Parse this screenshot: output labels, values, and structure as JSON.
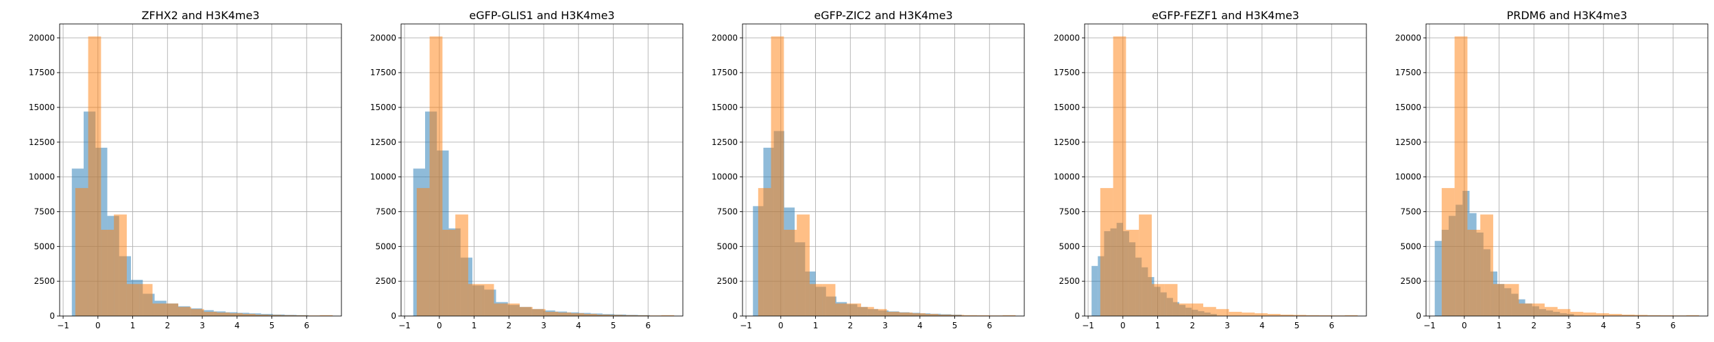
{
  "chart_data": [
    {
      "type": "bar",
      "title": "ZFHX2 and H3K4me3",
      "xlim": [
        -1.1,
        7.0
      ],
      "ylim": [
        0,
        21000
      ],
      "xticks": [
        -1,
        0,
        1,
        2,
        3,
        4,
        5,
        6
      ],
      "yticks": [
        0,
        2500,
        5000,
        7500,
        10000,
        12500,
        15000,
        17500,
        20000
      ],
      "grid": true,
      "series": [
        {
          "color": "#1f77b4",
          "alpha": 0.5,
          "bin_edges": [
            -0.75,
            -0.41,
            -0.07,
            0.27,
            0.61,
            0.95,
            1.29,
            1.63,
            1.97,
            2.31,
            2.65,
            2.99,
            3.33,
            3.67,
            4.01,
            4.35,
            4.69,
            5.03,
            5.37,
            5.71,
            6.05
          ],
          "counts": [
            10600,
            14700,
            12100,
            7200,
            4300,
            2600,
            1600,
            1100,
            900,
            700,
            550,
            420,
            330,
            270,
            230,
            190,
            150,
            110,
            80,
            60
          ]
        },
        {
          "color": "#ff7f0e",
          "alpha": 0.5,
          "bin_edges": [
            -0.65,
            -0.28,
            0.09,
            0.46,
            0.83,
            1.2,
            1.57,
            1.94,
            2.31,
            2.68,
            3.05,
            3.42,
            3.79,
            4.16,
            4.53,
            4.9,
            5.27,
            5.64,
            6.01,
            6.38,
            6.75
          ],
          "counts": [
            9200,
            20100,
            6200,
            7300,
            2300,
            2300,
            900,
            900,
            650,
            500,
            300,
            250,
            200,
            150,
            100,
            80,
            60,
            50,
            40,
            60
          ]
        }
      ]
    },
    {
      "type": "bar",
      "title": "eGFP-GLIS1 and H3K4me3",
      "xlim": [
        -1.1,
        7.0
      ],
      "ylim": [
        0,
        21000
      ],
      "xticks": [
        -1,
        0,
        1,
        2,
        3,
        4,
        5,
        6
      ],
      "yticks": [
        0,
        2500,
        5000,
        7500,
        10000,
        12500,
        15000,
        17500,
        20000
      ],
      "grid": true,
      "series": [
        {
          "color": "#1f77b4",
          "alpha": 0.5,
          "bin_edges": [
            -0.75,
            -0.41,
            -0.07,
            0.27,
            0.61,
            0.95,
            1.29,
            1.63,
            1.97,
            2.31,
            2.65,
            2.99,
            3.33,
            3.67,
            4.01,
            4.35,
            4.69,
            5.03,
            5.37,
            5.71,
            6.05
          ],
          "counts": [
            10600,
            14700,
            11900,
            6300,
            4200,
            2200,
            1900,
            1000,
            800,
            650,
            500,
            400,
            320,
            260,
            220,
            180,
            140,
            110,
            80,
            60
          ]
        },
        {
          "color": "#ff7f0e",
          "alpha": 0.5,
          "bin_edges": [
            -0.65,
            -0.28,
            0.09,
            0.46,
            0.83,
            1.2,
            1.57,
            1.94,
            2.31,
            2.68,
            3.05,
            3.42,
            3.79,
            4.16,
            4.53,
            4.9,
            5.27,
            5.64,
            6.01,
            6.38,
            6.75
          ],
          "counts": [
            9200,
            20100,
            6200,
            7300,
            2300,
            2300,
            900,
            900,
            650,
            500,
            300,
            250,
            200,
            150,
            100,
            80,
            60,
            50,
            40,
            60
          ]
        }
      ]
    },
    {
      "type": "bar",
      "title": "eGFP-ZIC2 and H3K4me3",
      "xlim": [
        -1.1,
        7.0
      ],
      "ylim": [
        0,
        21000
      ],
      "xticks": [
        -1,
        0,
        1,
        2,
        3,
        4,
        5,
        6
      ],
      "yticks": [
        0,
        2500,
        5000,
        7500,
        10000,
        12500,
        15000,
        17500,
        20000
      ],
      "grid": true,
      "series": [
        {
          "color": "#1f77b4",
          "alpha": 0.5,
          "bin_edges": [
            -0.8,
            -0.5,
            -0.2,
            0.1,
            0.4,
            0.7,
            1.0,
            1.3,
            1.6,
            1.9,
            2.2,
            2.5,
            2.8,
            3.1,
            3.4,
            3.7,
            4.0,
            4.3,
            4.6,
            4.9,
            5.2
          ],
          "counts": [
            7900,
            12100,
            13300,
            7800,
            5300,
            3200,
            2100,
            1400,
            1000,
            850,
            650,
            500,
            400,
            330,
            270,
            230,
            190,
            160,
            130,
            100
          ]
        },
        {
          "color": "#ff7f0e",
          "alpha": 0.5,
          "bin_edges": [
            -0.65,
            -0.28,
            0.09,
            0.46,
            0.83,
            1.2,
            1.57,
            1.94,
            2.31,
            2.68,
            3.05,
            3.42,
            3.79,
            4.16,
            4.53,
            4.9,
            5.27,
            5.64,
            6.01,
            6.38,
            6.75
          ],
          "counts": [
            9200,
            20100,
            6200,
            7300,
            2300,
            2300,
            900,
            900,
            650,
            500,
            300,
            250,
            200,
            150,
            100,
            80,
            60,
            50,
            40,
            60
          ]
        }
      ]
    },
    {
      "type": "bar",
      "title": "eGFP-FEZF1 and H3K4me3",
      "xlim": [
        -1.1,
        7.0
      ],
      "ylim": [
        0,
        21000
      ],
      "xticks": [
        -1,
        0,
        1,
        2,
        3,
        4,
        5,
        6
      ],
      "yticks": [
        0,
        2500,
        5000,
        7500,
        10000,
        12500,
        15000,
        17500,
        20000
      ],
      "grid": true,
      "series": [
        {
          "color": "#1f77b4",
          "alpha": 0.5,
          "bin_edges": [
            -0.9,
            -0.72,
            -0.54,
            -0.36,
            -0.18,
            0.0,
            0.18,
            0.36,
            0.54,
            0.72,
            0.9,
            1.08,
            1.26,
            1.44,
            1.62,
            1.8,
            1.98,
            2.16,
            2.34,
            2.52,
            2.7
          ],
          "counts": [
            3600,
            4300,
            6100,
            6300,
            6700,
            6100,
            5300,
            4200,
            3500,
            2800,
            2100,
            1700,
            1300,
            1000,
            800,
            600,
            450,
            350,
            250,
            150
          ]
        },
        {
          "color": "#ff7f0e",
          "alpha": 0.5,
          "bin_edges": [
            -0.65,
            -0.28,
            0.09,
            0.46,
            0.83,
            1.2,
            1.57,
            1.94,
            2.31,
            2.68,
            3.05,
            3.42,
            3.79,
            4.16,
            4.53,
            4.9,
            5.27,
            5.64,
            6.01,
            6.38,
            6.75
          ],
          "counts": [
            9200,
            20100,
            6200,
            7300,
            2300,
            2300,
            900,
            900,
            650,
            500,
            300,
            250,
            200,
            150,
            100,
            80,
            60,
            50,
            40,
            60
          ]
        }
      ]
    },
    {
      "type": "bar",
      "title": "PRDM6 and H3K4me3",
      "xlim": [
        -1.1,
        7.0
      ],
      "ylim": [
        0,
        21000
      ],
      "xticks": [
        -1,
        0,
        1,
        2,
        3,
        4,
        5,
        6
      ],
      "yticks": [
        0,
        2500,
        5000,
        7500,
        10000,
        12500,
        15000,
        17500,
        20000
      ],
      "grid": true,
      "series": [
        {
          "color": "#1f77b4",
          "alpha": 0.5,
          "bin_edges": [
            -0.85,
            -0.65,
            -0.45,
            -0.25,
            -0.05,
            0.15,
            0.35,
            0.55,
            0.75,
            0.95,
            1.15,
            1.35,
            1.55,
            1.75,
            1.95,
            2.15,
            2.35,
            2.55,
            2.75,
            2.95,
            3.15
          ],
          "counts": [
            5400,
            6200,
            7200,
            8000,
            9000,
            7400,
            6000,
            4800,
            3200,
            2300,
            2000,
            1600,
            1200,
            900,
            700,
            500,
            400,
            300,
            200,
            150
          ]
        },
        {
          "color": "#ff7f0e",
          "alpha": 0.5,
          "bin_edges": [
            -0.65,
            -0.28,
            0.09,
            0.46,
            0.83,
            1.2,
            1.57,
            1.94,
            2.31,
            2.68,
            3.05,
            3.42,
            3.79,
            4.16,
            4.53,
            4.9,
            5.27,
            5.64,
            6.01,
            6.38,
            6.75
          ],
          "counts": [
            9200,
            20100,
            6200,
            7300,
            2300,
            2300,
            900,
            900,
            650,
            500,
            300,
            250,
            200,
            150,
            100,
            80,
            60,
            50,
            40,
            60
          ]
        }
      ]
    }
  ]
}
